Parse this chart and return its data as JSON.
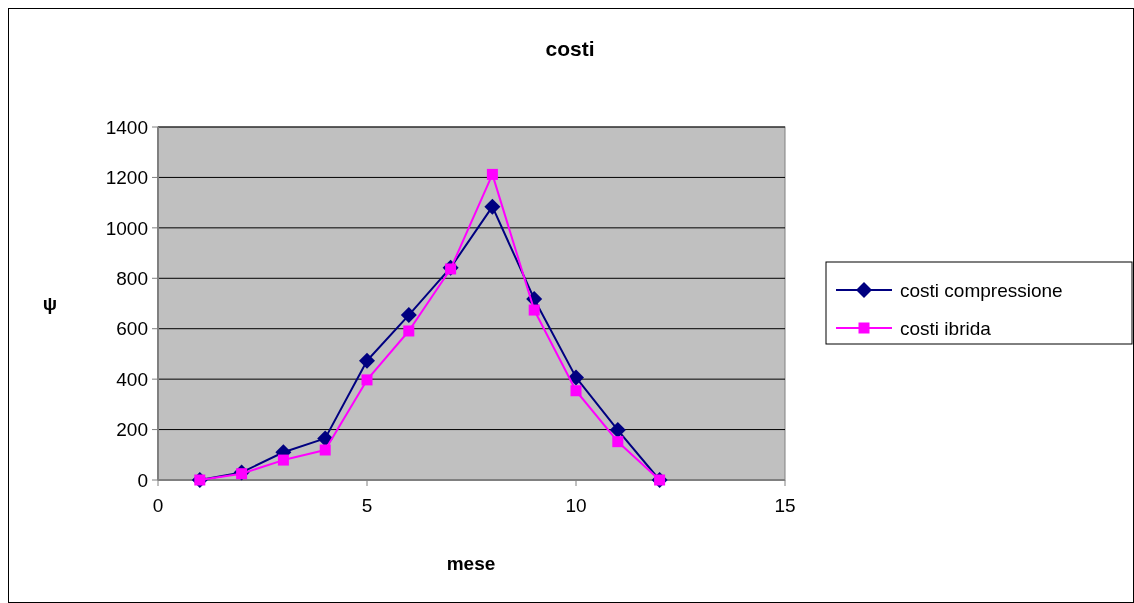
{
  "chart_data": {
    "type": "line",
    "title": "costi",
    "xlabel": "mese",
    "ylabel": "ψ",
    "x": [
      1,
      2,
      3,
      4,
      5,
      6,
      7,
      8,
      9,
      10,
      11,
      12
    ],
    "series": [
      {
        "name": "costi compressione",
        "color": "#000080",
        "marker": "diamond",
        "values": [
          0,
          30,
          110,
          165,
          473,
          654,
          842,
          1084,
          718,
          407,
          198,
          0
        ]
      },
      {
        "name": "costi ibrida",
        "color": "#ff00ff",
        "marker": "square",
        "values": [
          0,
          25,
          79,
          119,
          397,
          591,
          837,
          1212,
          674,
          354,
          152,
          0
        ]
      }
    ],
    "xlim": [
      0,
      15
    ],
    "xticks": [
      0,
      5,
      10,
      15
    ],
    "ylim": [
      0,
      1400
    ],
    "yticks": [
      0,
      200,
      400,
      600,
      800,
      1000,
      1200,
      1400
    ],
    "grid": "y",
    "legend": "right"
  }
}
